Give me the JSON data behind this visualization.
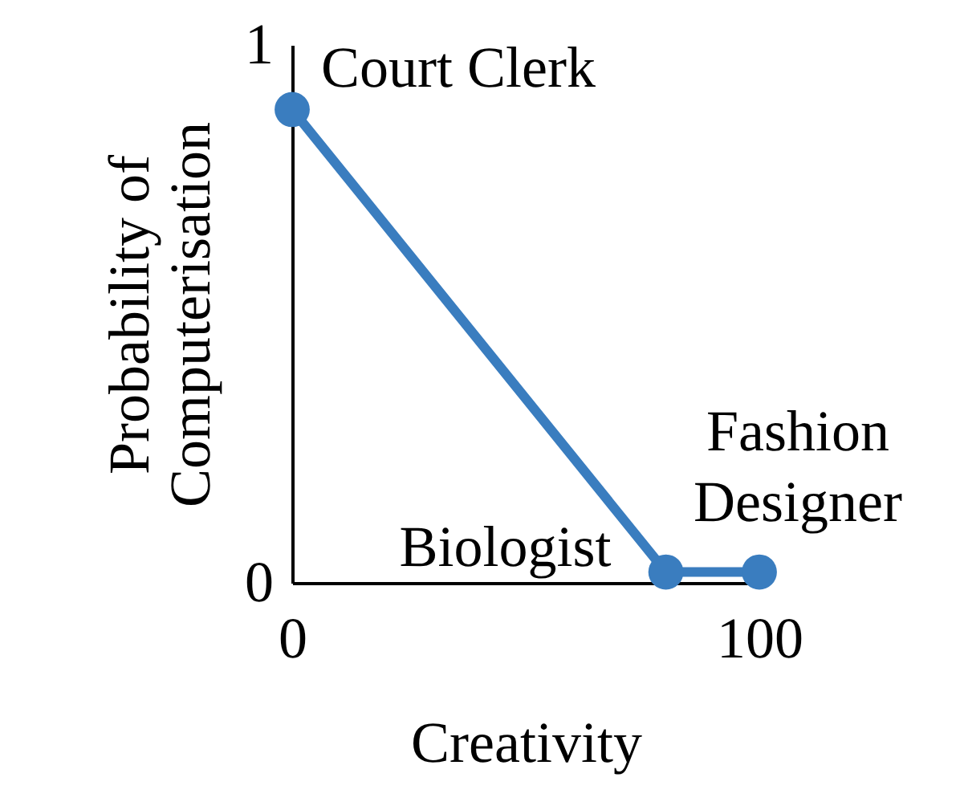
{
  "chart_data": {
    "type": "line",
    "xlabel": "Creativity",
    "ylabel": "Probability of Computerisation",
    "x": [
      0,
      80,
      100
    ],
    "series": [
      {
        "color": "#3a7dbf",
        "values": [
          0.88,
          0.02,
          0.02
        ]
      }
    ],
    "xlim": [
      0,
      100
    ],
    "xticks": [
      0,
      100
    ],
    "ylim": [
      0,
      1
    ],
    "yticks": [
      0,
      1
    ],
    "grid": false,
    "marker": "circle",
    "line_style": "solid",
    "annotations": [
      {
        "text": "Court Clerk",
        "x": 0,
        "y": 0.88
      },
      {
        "text": "Biologist",
        "x": 80,
        "y": 0.02
      },
      {
        "text": "Fashion Designer",
        "x": 100,
        "y": 0.02
      }
    ]
  }
}
